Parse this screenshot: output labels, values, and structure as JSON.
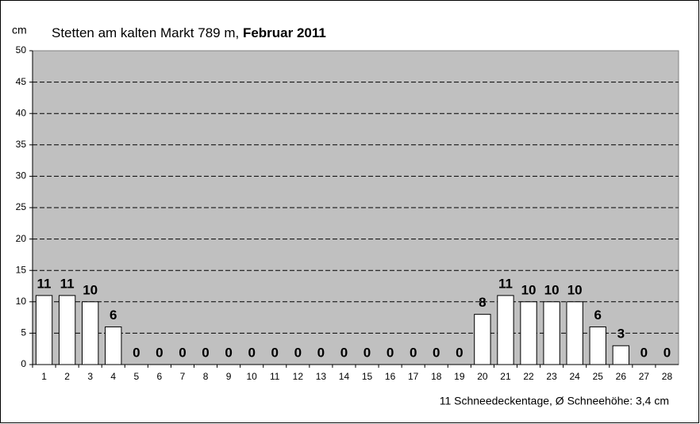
{
  "chart_data": {
    "type": "bar",
    "title": "Stetten am kalten Markt 789 m,",
    "title_emphasis": "Februar 2011",
    "y_label": "cm",
    "footer": "11 Schneedeckentage, Ø Schneehöhe: 3,4 cm",
    "categories": [
      "1",
      "2",
      "3",
      "4",
      "5",
      "6",
      "7",
      "8",
      "9",
      "10",
      "11",
      "12",
      "13",
      "14",
      "15",
      "16",
      "17",
      "18",
      "19",
      "20",
      "21",
      "22",
      "23",
      "24",
      "25",
      "26",
      "27",
      "28"
    ],
    "values": [
      11,
      11,
      10,
      6,
      0,
      0,
      0,
      0,
      0,
      0,
      0,
      0,
      0,
      0,
      0,
      0,
      0,
      0,
      0,
      8,
      11,
      10,
      10,
      10,
      6,
      3,
      0,
      0
    ],
    "color": "#ffffff",
    "plot_background": "#c0c0c0",
    "ylim": [
      0,
      50
    ],
    "yticks": [
      0,
      5,
      10,
      15,
      20,
      25,
      30,
      35,
      40,
      45,
      50
    ],
    "grid": true
  }
}
